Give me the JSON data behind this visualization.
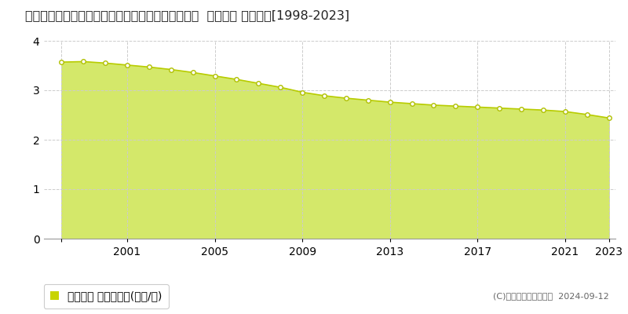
{
  "title": "福島県耶麻郡西会津町野沢字上原下乙２７３３番２  地価公示 地価推移[1998-2023]",
  "years": [
    1998,
    1999,
    2000,
    2001,
    2002,
    2003,
    2004,
    2005,
    2006,
    2007,
    2008,
    2009,
    2010,
    2011,
    2012,
    2013,
    2014,
    2015,
    2016,
    2017,
    2018,
    2019,
    2020,
    2021,
    2022,
    2023
  ],
  "values": [
    3.57,
    3.58,
    3.55,
    3.51,
    3.47,
    3.42,
    3.36,
    3.29,
    3.22,
    3.14,
    3.06,
    2.96,
    2.89,
    2.84,
    2.8,
    2.76,
    2.73,
    2.7,
    2.68,
    2.66,
    2.64,
    2.62,
    2.6,
    2.57,
    2.51,
    2.44
  ],
  "line_color": "#b8cc00",
  "fill_color": "#d4e86a",
  "fill_alpha": 1.0,
  "marker_facecolor": "#ffffff",
  "marker_edgecolor": "#b0c000",
  "marker_size": 4,
  "grid_color": "#cccccc",
  "bg_color": "#ffffff",
  "ylim": [
    0,
    4
  ],
  "yticks": [
    0,
    1,
    2,
    3,
    4
  ],
  "xticks": [
    1998,
    2001,
    2005,
    2009,
    2013,
    2017,
    2021,
    2023
  ],
  "xtick_labels": [
    "",
    "2001",
    "2005",
    "2009",
    "2013",
    "2017",
    "2021",
    "2023"
  ],
  "legend_label": "地価公示 平均坪単価(万円/坪)",
  "legend_marker_color": "#c8d400",
  "copyright_text": "(C)土地価格ドットコム  2024-09-12",
  "title_fontsize": 11.5,
  "tick_fontsize": 10,
  "legend_fontsize": 10,
  "copyright_fontsize": 8
}
